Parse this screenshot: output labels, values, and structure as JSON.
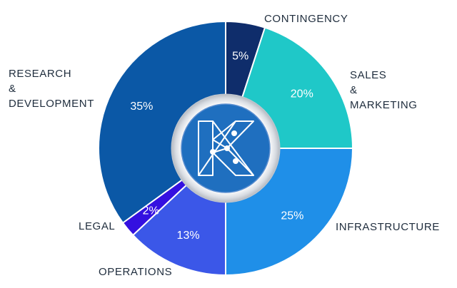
{
  "chart_data": {
    "type": "pie",
    "title": "",
    "categories": [
      "CONTINGENCY",
      "SALES & MARKETING",
      "INFRASTRUCTURE",
      "OPERATIONS",
      "LEGAL",
      "RESEARCH & DEVELOPMENT"
    ],
    "values": [
      5,
      20,
      25,
      13,
      2,
      35
    ],
    "value_labels": [
      "5%",
      "20%",
      "25%",
      "13%",
      "2%",
      "35%"
    ],
    "label_lines": [
      [
        "CONTINGENCY"
      ],
      [
        "SALES",
        "&",
        "MARKETING"
      ],
      [
        "INFRASTRUCTURE"
      ],
      [
        "OPERATIONS"
      ],
      [
        "LEGAL"
      ],
      [
        "RESEARCH",
        "&",
        "DEVELOPMENT"
      ]
    ],
    "colors": [
      "#0f2d6b",
      "#1fc8c8",
      "#1f8fe8",
      "#3b57e8",
      "#3410e0",
      "#0b58a6"
    ],
    "legend": "none",
    "start_angle": "12 o'clock",
    "direction": "clockwise",
    "center_logo": "K-network-logo"
  }
}
